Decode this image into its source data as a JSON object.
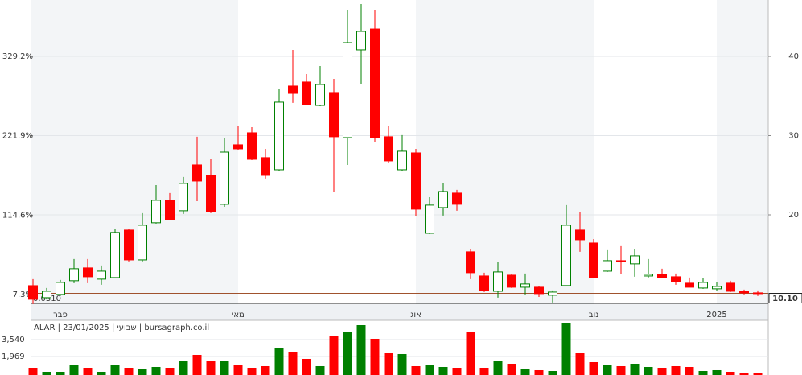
{
  "chart_data": [
    {
      "type": "candlestick",
      "categories": [
        null,
        null,
        "פבר",
        null,
        null,
        null,
        null,
        null,
        null,
        null,
        null,
        null,
        null,
        null,
        null,
        "מאי",
        null,
        null,
        null,
        null,
        null,
        null,
        null,
        null,
        null,
        null,
        null,
        null,
        "אוג",
        null,
        null,
        null,
        null,
        null,
        null,
        null,
        null,
        null,
        null,
        null,
        null,
        "נוב",
        null,
        null,
        null,
        null,
        null,
        null,
        null,
        null,
        "2025",
        null,
        null,
        null
      ],
      "open": [
        11.07,
        9.55,
        9.96,
        11.69,
        13.31,
        11.89,
        12.09,
        18.08,
        14.32,
        19.0,
        21.84,
        20.52,
        26.3,
        24.98,
        21.33,
        28.84,
        30.36,
        27.22,
        25.69,
        36.25,
        36.76,
        33.81,
        35.44,
        29.75,
        40.82,
        43.45,
        29.86,
        25.69,
        27.82,
        17.67,
        20.92,
        22.75,
        15.34,
        12.29,
        10.36,
        12.39,
        10.87,
        10.87,
        9.86,
        11.08,
        18.08,
        16.45,
        12.9,
        14.22,
        13.82,
        12.29,
        12.5,
        12.19,
        11.38,
        10.77,
        10.67,
        11.38,
        10.36,
        10.16
      ],
      "high": [
        11.89,
        10.77,
        11.79,
        14.43,
        14.43,
        13.62,
        18.18,
        18.18,
        20.21,
        23.76,
        22.75,
        24.78,
        29.86,
        27.11,
        29.65,
        31.27,
        31.07,
        28.33,
        35.94,
        40.82,
        37.77,
        38.79,
        37.16,
        45.79,
        46.6,
        45.89,
        31.27,
        30.06,
        28.33,
        22.24,
        23.97,
        23.16,
        15.64,
        12.7,
        14.02,
        12.5,
        12.6,
        10.97,
        10.47,
        21.23,
        20.41,
        16.96,
        15.54,
        16.05,
        15.74,
        14.43,
        13.21,
        12.6,
        12.09,
        11.99,
        11.48,
        11.69,
        10.57,
        10.47
      ],
      "low": [
        8.75,
        9.35,
        9.76,
        11.38,
        11.38,
        11.18,
        11.99,
        14.12,
        14.12,
        18.89,
        19.3,
        20.11,
        21.73,
        20.21,
        21.02,
        28.23,
        26.91,
        24.58,
        25.59,
        34.12,
        33.81,
        33.71,
        22.95,
        26.3,
        36.45,
        29.24,
        26.5,
        25.59,
        19.8,
        17.57,
        19.91,
        20.52,
        11.89,
        10.26,
        9.55,
        10.77,
        9.96,
        9.65,
        8.95,
        11.08,
        15.34,
        11.99,
        12.8,
        12.5,
        12.19,
        12.09,
        11.99,
        11.18,
        10.87,
        10.67,
        10.36,
        10.26,
        9.96,
        9.76
      ],
      "close": [
        9.35,
        10.36,
        11.48,
        13.21,
        12.19,
        12.9,
        17.78,
        14.32,
        18.69,
        21.84,
        19.4,
        23.97,
        24.27,
        20.41,
        27.92,
        28.33,
        27.01,
        24.98,
        34.22,
        35.33,
        33.91,
        36.45,
        29.86,
        41.73,
        43.15,
        29.75,
        26.81,
        28.03,
        20.72,
        21.23,
        22.95,
        21.33,
        12.7,
        10.46,
        12.8,
        10.87,
        11.28,
        10.06,
        10.26,
        18.69,
        16.86,
        12.09,
        14.22,
        14.12,
        14.83,
        12.5,
        12.09,
        11.58,
        10.87,
        11.48,
        10.97,
        10.36,
        10.16,
        10.1
      ],
      "up_color": "#008000",
      "down_color": "#ff0000",
      "ylim": [
        8.73,
        47.11
      ],
      "yticks": [
        20,
        30,
        40
      ],
      "y2lim": [
        -5.75,
        405.3
      ],
      "y2ticks": [
        {
          "value": 7.3,
          "label": "7.3%"
        },
        {
          "value": 114.6,
          "label": "114.6%"
        },
        {
          "value": 221.9,
          "label": "221.9%"
        },
        {
          "value": 329.2,
          "label": "329.2%"
        }
      ],
      "last_value": {
        "value": 10.1,
        "label": "10.10"
      },
      "annotations": [
        "0.0310"
      ],
      "grid": true
    },
    {
      "type": "bar",
      "title": "ALAR | 23/01/2025 | שבועי | bursagraph.co.il",
      "values": [
        920,
        546,
        546,
        1219,
        920,
        546,
        1219,
        920,
        845,
        995,
        920,
        1518,
        2117,
        1518,
        1593,
        1144,
        920,
        1070,
        2715,
        2416,
        1743,
        1070,
        3837,
        4286,
        4884,
        3613,
        2266,
        2192,
        1070,
        1144,
        995,
        920,
        4286,
        920,
        1518,
        1294,
        770,
        696,
        621,
        5109,
        2266,
        1444,
        1219,
        1070,
        1294,
        995,
        920,
        1070,
        995,
        621,
        696,
        546,
        471,
        471
      ],
      "ylim": [
        0,
        5333
      ],
      "yticks": [
        {
          "value": 1969,
          "label": "1,969"
        },
        {
          "value": 3540,
          "label": "3,540"
        }
      ],
      "grid": true
    }
  ]
}
